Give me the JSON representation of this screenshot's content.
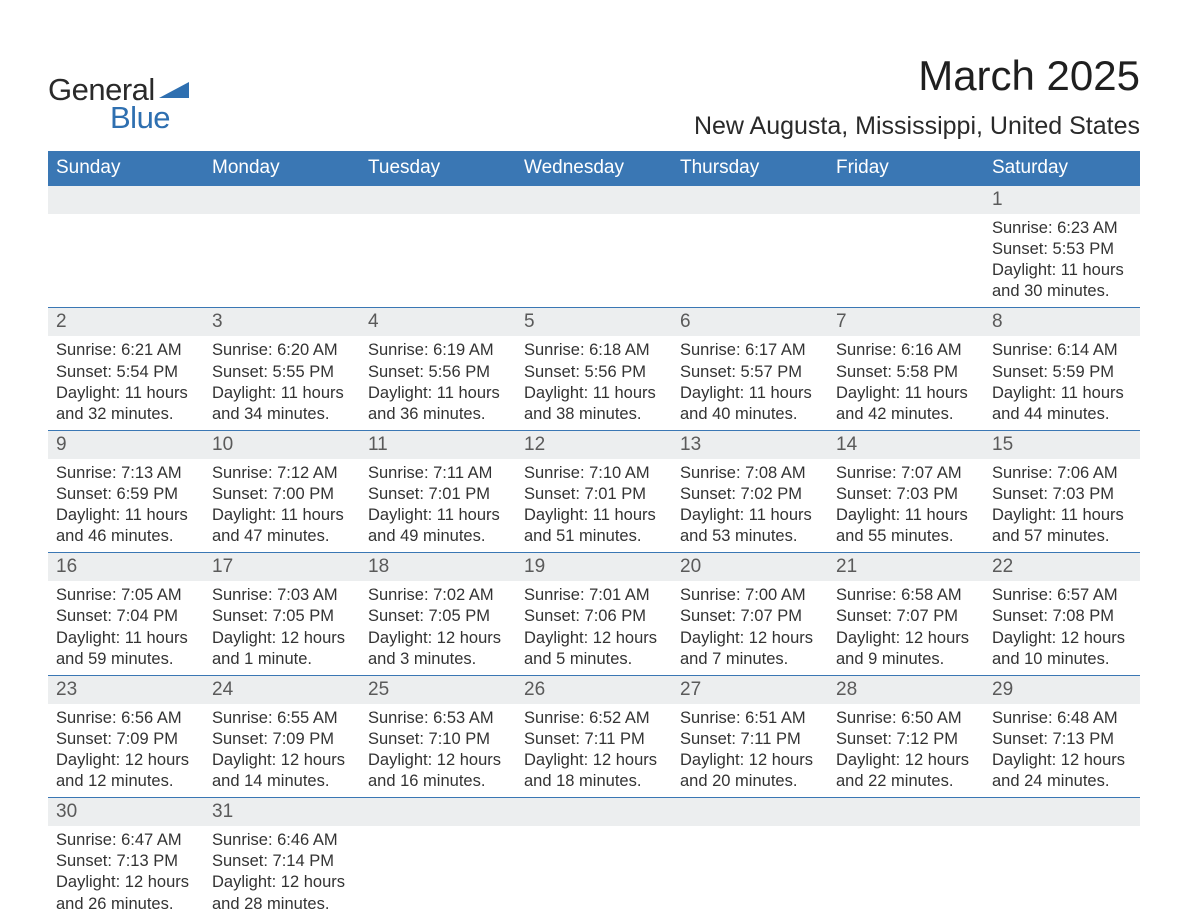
{
  "brand": {
    "text_general": "General",
    "text_blue": "Blue",
    "logo_color": "#2e6fb0",
    "text_dark": "#2a2a2a"
  },
  "colors": {
    "header_bg": "#3a77b4",
    "header_text": "#ffffff",
    "daynum_bg": "#eceeef",
    "daynum_text": "#5a5a5a",
    "body_text": "#333333",
    "row_border": "#3a77b4",
    "page_bg": "#ffffff"
  },
  "typography": {
    "month_title_fontsize": 42,
    "location_fontsize": 25,
    "weekday_fontsize": 19,
    "daynum_fontsize": 19,
    "body_fontsize": 16.5,
    "logo_fontsize": 31
  },
  "header": {
    "month_title": "March 2025",
    "location": "New Augusta, Mississippi, United States"
  },
  "weekdays": [
    "Sunday",
    "Monday",
    "Tuesday",
    "Wednesday",
    "Thursday",
    "Friday",
    "Saturday"
  ],
  "weeks": [
    [
      null,
      null,
      null,
      null,
      null,
      null,
      {
        "num": "1",
        "sunrise": "Sunrise: 6:23 AM",
        "sunset": "Sunset: 5:53 PM",
        "daylight1": "Daylight: 11 hours",
        "daylight2": "and 30 minutes."
      }
    ],
    [
      {
        "num": "2",
        "sunrise": "Sunrise: 6:21 AM",
        "sunset": "Sunset: 5:54 PM",
        "daylight1": "Daylight: 11 hours",
        "daylight2": "and 32 minutes."
      },
      {
        "num": "3",
        "sunrise": "Sunrise: 6:20 AM",
        "sunset": "Sunset: 5:55 PM",
        "daylight1": "Daylight: 11 hours",
        "daylight2": "and 34 minutes."
      },
      {
        "num": "4",
        "sunrise": "Sunrise: 6:19 AM",
        "sunset": "Sunset: 5:56 PM",
        "daylight1": "Daylight: 11 hours",
        "daylight2": "and 36 minutes."
      },
      {
        "num": "5",
        "sunrise": "Sunrise: 6:18 AM",
        "sunset": "Sunset: 5:56 PM",
        "daylight1": "Daylight: 11 hours",
        "daylight2": "and 38 minutes."
      },
      {
        "num": "6",
        "sunrise": "Sunrise: 6:17 AM",
        "sunset": "Sunset: 5:57 PM",
        "daylight1": "Daylight: 11 hours",
        "daylight2": "and 40 minutes."
      },
      {
        "num": "7",
        "sunrise": "Sunrise: 6:16 AM",
        "sunset": "Sunset: 5:58 PM",
        "daylight1": "Daylight: 11 hours",
        "daylight2": "and 42 minutes."
      },
      {
        "num": "8",
        "sunrise": "Sunrise: 6:14 AM",
        "sunset": "Sunset: 5:59 PM",
        "daylight1": "Daylight: 11 hours",
        "daylight2": "and 44 minutes."
      }
    ],
    [
      {
        "num": "9",
        "sunrise": "Sunrise: 7:13 AM",
        "sunset": "Sunset: 6:59 PM",
        "daylight1": "Daylight: 11 hours",
        "daylight2": "and 46 minutes."
      },
      {
        "num": "10",
        "sunrise": "Sunrise: 7:12 AM",
        "sunset": "Sunset: 7:00 PM",
        "daylight1": "Daylight: 11 hours",
        "daylight2": "and 47 minutes."
      },
      {
        "num": "11",
        "sunrise": "Sunrise: 7:11 AM",
        "sunset": "Sunset: 7:01 PM",
        "daylight1": "Daylight: 11 hours",
        "daylight2": "and 49 minutes."
      },
      {
        "num": "12",
        "sunrise": "Sunrise: 7:10 AM",
        "sunset": "Sunset: 7:01 PM",
        "daylight1": "Daylight: 11 hours",
        "daylight2": "and 51 minutes."
      },
      {
        "num": "13",
        "sunrise": "Sunrise: 7:08 AM",
        "sunset": "Sunset: 7:02 PM",
        "daylight1": "Daylight: 11 hours",
        "daylight2": "and 53 minutes."
      },
      {
        "num": "14",
        "sunrise": "Sunrise: 7:07 AM",
        "sunset": "Sunset: 7:03 PM",
        "daylight1": "Daylight: 11 hours",
        "daylight2": "and 55 minutes."
      },
      {
        "num": "15",
        "sunrise": "Sunrise: 7:06 AM",
        "sunset": "Sunset: 7:03 PM",
        "daylight1": "Daylight: 11 hours",
        "daylight2": "and 57 minutes."
      }
    ],
    [
      {
        "num": "16",
        "sunrise": "Sunrise: 7:05 AM",
        "sunset": "Sunset: 7:04 PM",
        "daylight1": "Daylight: 11 hours",
        "daylight2": "and 59 minutes."
      },
      {
        "num": "17",
        "sunrise": "Sunrise: 7:03 AM",
        "sunset": "Sunset: 7:05 PM",
        "daylight1": "Daylight: 12 hours",
        "daylight2": "and 1 minute."
      },
      {
        "num": "18",
        "sunrise": "Sunrise: 7:02 AM",
        "sunset": "Sunset: 7:05 PM",
        "daylight1": "Daylight: 12 hours",
        "daylight2": "and 3 minutes."
      },
      {
        "num": "19",
        "sunrise": "Sunrise: 7:01 AM",
        "sunset": "Sunset: 7:06 PM",
        "daylight1": "Daylight: 12 hours",
        "daylight2": "and 5 minutes."
      },
      {
        "num": "20",
        "sunrise": "Sunrise: 7:00 AM",
        "sunset": "Sunset: 7:07 PM",
        "daylight1": "Daylight: 12 hours",
        "daylight2": "and 7 minutes."
      },
      {
        "num": "21",
        "sunrise": "Sunrise: 6:58 AM",
        "sunset": "Sunset: 7:07 PM",
        "daylight1": "Daylight: 12 hours",
        "daylight2": "and 9 minutes."
      },
      {
        "num": "22",
        "sunrise": "Sunrise: 6:57 AM",
        "sunset": "Sunset: 7:08 PM",
        "daylight1": "Daylight: 12 hours",
        "daylight2": "and 10 minutes."
      }
    ],
    [
      {
        "num": "23",
        "sunrise": "Sunrise: 6:56 AM",
        "sunset": "Sunset: 7:09 PM",
        "daylight1": "Daylight: 12 hours",
        "daylight2": "and 12 minutes."
      },
      {
        "num": "24",
        "sunrise": "Sunrise: 6:55 AM",
        "sunset": "Sunset: 7:09 PM",
        "daylight1": "Daylight: 12 hours",
        "daylight2": "and 14 minutes."
      },
      {
        "num": "25",
        "sunrise": "Sunrise: 6:53 AM",
        "sunset": "Sunset: 7:10 PM",
        "daylight1": "Daylight: 12 hours",
        "daylight2": "and 16 minutes."
      },
      {
        "num": "26",
        "sunrise": "Sunrise: 6:52 AM",
        "sunset": "Sunset: 7:11 PM",
        "daylight1": "Daylight: 12 hours",
        "daylight2": "and 18 minutes."
      },
      {
        "num": "27",
        "sunrise": "Sunrise: 6:51 AM",
        "sunset": "Sunset: 7:11 PM",
        "daylight1": "Daylight: 12 hours",
        "daylight2": "and 20 minutes."
      },
      {
        "num": "28",
        "sunrise": "Sunrise: 6:50 AM",
        "sunset": "Sunset: 7:12 PM",
        "daylight1": "Daylight: 12 hours",
        "daylight2": "and 22 minutes."
      },
      {
        "num": "29",
        "sunrise": "Sunrise: 6:48 AM",
        "sunset": "Sunset: 7:13 PM",
        "daylight1": "Daylight: 12 hours",
        "daylight2": "and 24 minutes."
      }
    ],
    [
      {
        "num": "30",
        "sunrise": "Sunrise: 6:47 AM",
        "sunset": "Sunset: 7:13 PM",
        "daylight1": "Daylight: 12 hours",
        "daylight2": "and 26 minutes."
      },
      {
        "num": "31",
        "sunrise": "Sunrise: 6:46 AM",
        "sunset": "Sunset: 7:14 PM",
        "daylight1": "Daylight: 12 hours",
        "daylight2": "and 28 minutes."
      },
      null,
      null,
      null,
      null,
      null
    ]
  ]
}
